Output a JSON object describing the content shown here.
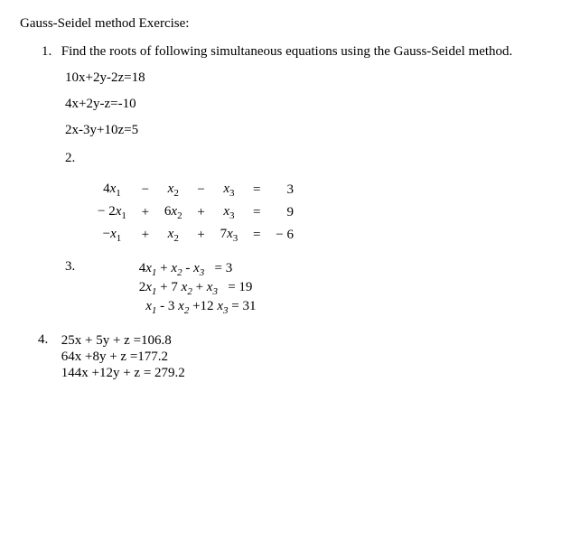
{
  "title": "Gauss-Seidel method Exercise:",
  "problem1": {
    "number": "1.",
    "text": "Find the roots of following simultaneous equations using the Gauss-Seidel method.",
    "eq1": "10x+2y-2z=18",
    "eq2": "4x+2y-z=-10",
    "eq3": "2x-3y+10z=5"
  },
  "sub2": {
    "label": "2.",
    "rows": [
      {
        "c1a": "4",
        "c1v": "x",
        "c1s": "1",
        "op1": "−",
        "c2a": "",
        "c2v": "x",
        "c2s": "2",
        "op2": "−",
        "c3a": "",
        "c3v": "x",
        "c3s": "3",
        "eq": "=",
        "rhs": "3"
      },
      {
        "c1a": "− 2",
        "c1v": "x",
        "c1s": "1",
        "op1": "+",
        "c2a": "6",
        "c2v": "x",
        "c2s": "2",
        "op2": "+",
        "c3a": "",
        "c3v": "x",
        "c3s": "3",
        "eq": "=",
        "rhs": "9"
      },
      {
        "c1a": "−",
        "c1v": "x",
        "c1s": "1",
        "op1": "+",
        "c2a": "",
        "c2v": "x",
        "c2s": "2",
        "op2": "+",
        "c3a": "7",
        "c3v": "x",
        "c3s": "3",
        "eq": "=",
        "rhs": "− 6"
      }
    ]
  },
  "sub3": {
    "label": "3.",
    "eq1": {
      "a": "4",
      "sa": "1",
      "b": " + ",
      "c": "",
      "sc": "2",
      "d": "  - ",
      "e": "",
      "se": "3",
      "rhs": "= 3"
    },
    "eq2": {
      "a": "2",
      "sa": "1",
      "b": " + 7 ",
      "c": "",
      "sc": "2",
      "d": " + ",
      "e": "",
      "se": "3",
      "rhs": "= 19"
    },
    "eq3": {
      "a": "",
      "sa": "1",
      "b": "  - 3 ",
      "c": "",
      "sc": "2",
      "d": " +12 ",
      "e": "",
      "se": "3",
      "rhs": "= 31"
    }
  },
  "sub4": {
    "label": "4.",
    "eq1": "25x + 5y + z =106.8",
    "eq2": "64x +8y + z =177.2",
    "eq3": "144x +12y + z = 279.2"
  }
}
